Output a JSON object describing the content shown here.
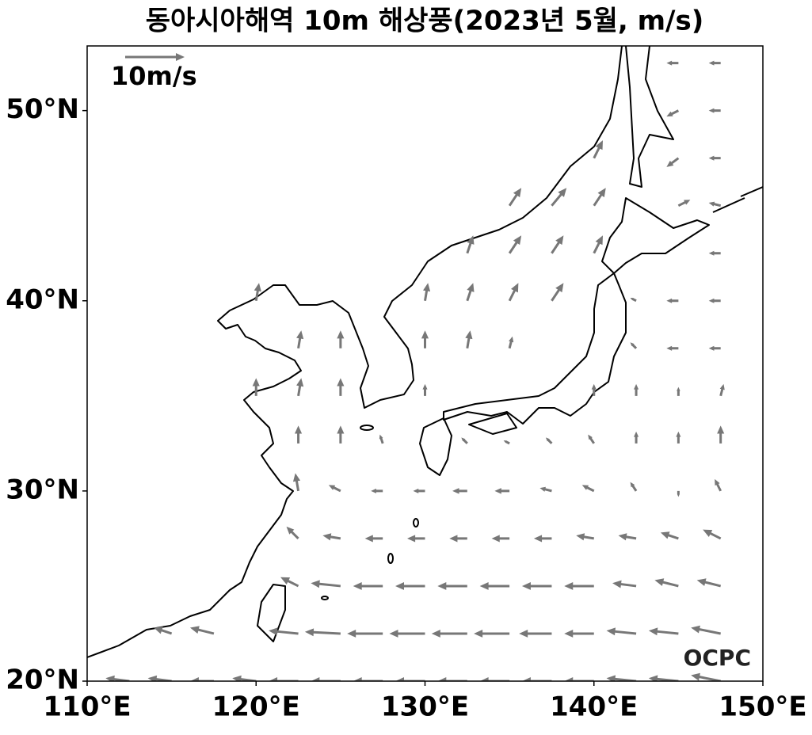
{
  "title": "동아시아해역 10m 해상풍(2023년 5월, m/s)",
  "map": {
    "xlim": [
      110,
      150
    ],
    "ylim": [
      20,
      53.4
    ],
    "xticks": [
      {
        "value": 110,
        "label": "110°E"
      },
      {
        "value": 120,
        "label": "120°E"
      },
      {
        "value": 130,
        "label": "130°E"
      },
      {
        "value": 140,
        "label": "140°E"
      },
      {
        "value": 150,
        "label": "150°E"
      }
    ],
    "yticks": [
      {
        "value": 20,
        "label": "20°N"
      },
      {
        "value": 30,
        "label": "30°N"
      },
      {
        "value": 40,
        "label": "40°N"
      },
      {
        "value": 50,
        "label": "50°N"
      }
    ],
    "arrow_color": "#777777",
    "reference": {
      "value": 10,
      "label": "10m/s"
    },
    "wind": {
      "lons": [
        110,
        112.5,
        115,
        117.5,
        120,
        122.5,
        125,
        127.5,
        130,
        132.5,
        135,
        137.5,
        140,
        142.5,
        145,
        147.5
      ],
      "lats": [
        20,
        22.5,
        25,
        27.5,
        30,
        32.5,
        35,
        37.5,
        40,
        42.5,
        45,
        47.5,
        50,
        52.5
      ],
      "u": [
        [
          -3,
          -4,
          -4,
          -4,
          -4,
          -5,
          -5,
          -5,
          -5,
          -5,
          -5,
          -5,
          -5,
          -5,
          -5,
          -5
        ],
        [
          null,
          null,
          -3,
          -4,
          null,
          -5,
          -6,
          -6,
          -6,
          -6,
          -6,
          -5.5,
          -5,
          -5,
          -5,
          -5
        ],
        [
          null,
          null,
          null,
          null,
          null,
          -3,
          -5,
          -5,
          -5,
          -5,
          -5,
          -5,
          -5,
          -4,
          -4,
          -4
        ],
        [
          null,
          null,
          null,
          null,
          null,
          -2,
          -3,
          -3,
          -3,
          -3,
          -3,
          -3,
          -3,
          -3,
          -3,
          -3
        ],
        [
          null,
          null,
          null,
          null,
          null,
          -0.5,
          -2,
          -2,
          -2,
          -2.5,
          -2.5,
          -2,
          -2,
          -1,
          0,
          -1
        ],
        [
          null,
          null,
          null,
          null,
          null,
          0,
          0,
          -0.5,
          null,
          -1,
          -1,
          -1,
          -1,
          0,
          0,
          0
        ],
        [
          null,
          null,
          null,
          null,
          0,
          0.5,
          0,
          null,
          0,
          null,
          null,
          null,
          0,
          0,
          0,
          0.5
        ],
        [
          null,
          null,
          null,
          null,
          null,
          0.5,
          0,
          null,
          0,
          0.5,
          0.5,
          null,
          null,
          -1,
          -2,
          -2
        ],
        [
          null,
          null,
          null,
          null,
          0.5,
          null,
          null,
          null,
          0.5,
          1,
          1.5,
          2,
          null,
          -1,
          -2,
          -2
        ],
        [
          null,
          null,
          null,
          null,
          null,
          null,
          null,
          null,
          null,
          1,
          2,
          2,
          1.5,
          null,
          null,
          -2
        ],
        [
          null,
          null,
          null,
          null,
          null,
          null,
          null,
          null,
          null,
          null,
          2,
          2.5,
          2,
          null,
          2,
          -2
        ],
        [
          null,
          null,
          null,
          null,
          null,
          null,
          null,
          null,
          null,
          null,
          null,
          null,
          1.5,
          null,
          -2,
          -2
        ],
        [
          null,
          null,
          null,
          null,
          null,
          null,
          null,
          null,
          null,
          null,
          null,
          null,
          null,
          null,
          -2,
          -2
        ],
        [
          null,
          null,
          null,
          null,
          null,
          null,
          null,
          null,
          null,
          null,
          null,
          null,
          null,
          null,
          -2,
          -2
        ]
      ],
      "v": [
        [
          1,
          0.5,
          0.5,
          0,
          0.5,
          0,
          0,
          0,
          0,
          0,
          0,
          0,
          0,
          0.5,
          0.5,
          1
        ],
        [
          null,
          null,
          1,
          1,
          null,
          0.5,
          0.3,
          0,
          0,
          0,
          0,
          0,
          0,
          0.5,
          0.5,
          1
        ],
        [
          null,
          null,
          null,
          null,
          null,
          1.5,
          0.5,
          0,
          0,
          0,
          0,
          0,
          0,
          0.5,
          1,
          1
        ],
        [
          null,
          null,
          null,
          null,
          null,
          2,
          0.5,
          0,
          0,
          0,
          0,
          0,
          0.5,
          0.5,
          1,
          1.5
        ],
        [
          null,
          null,
          null,
          null,
          null,
          3,
          1,
          0,
          0,
          0,
          0,
          0.5,
          1,
          1.5,
          -1,
          2
        ],
        [
          null,
          null,
          null,
          null,
          null,
          3,
          3,
          1.5,
          null,
          1,
          0.5,
          1,
          1.5,
          2,
          2,
          3
        ],
        [
          null,
          null,
          null,
          null,
          3,
          3,
          3,
          null,
          2,
          null,
          null,
          null,
          2,
          2,
          1.5,
          2
        ],
        [
          null,
          null,
          null,
          null,
          null,
          3,
          3,
          null,
          3,
          3,
          2,
          null,
          null,
          1,
          0,
          0
        ],
        [
          null,
          null,
          null,
          null,
          3,
          null,
          null,
          null,
          3,
          3,
          3,
          3,
          null,
          0.5,
          0,
          0
        ],
        [
          null,
          null,
          null,
          null,
          null,
          null,
          null,
          null,
          null,
          3,
          3,
          3,
          3,
          null,
          null,
          0
        ],
        [
          null,
          null,
          null,
          null,
          null,
          null,
          null,
          null,
          null,
          null,
          3,
          3,
          3,
          null,
          1,
          0.5
        ],
        [
          null,
          null,
          null,
          null,
          null,
          null,
          null,
          null,
          null,
          null,
          null,
          null,
          3,
          null,
          -1.5,
          0
        ],
        [
          null,
          null,
          null,
          null,
          null,
          null,
          null,
          null,
          null,
          null,
          null,
          null,
          null,
          null,
          -1,
          0
        ],
        [
          null,
          null,
          null,
          null,
          null,
          null,
          null,
          null,
          null,
          null,
          null,
          null,
          null,
          null,
          0,
          0
        ]
      ]
    }
  },
  "watermark": "OCPC"
}
